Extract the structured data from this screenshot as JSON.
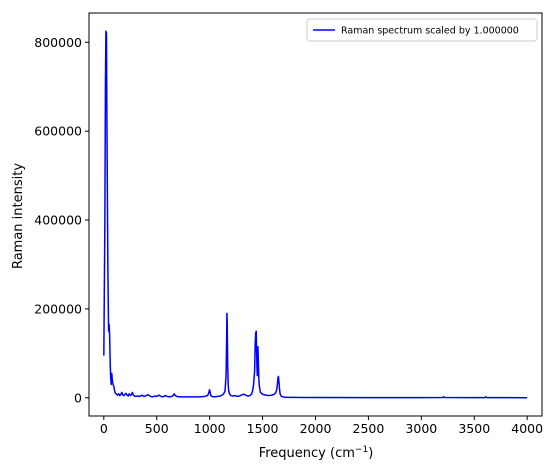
{
  "chart_data": {
    "type": "line",
    "xlabel": "Frequency (cm",
    "xlabel_sup": "−1",
    "xlabel_suffix": ")",
    "ylabel": "Raman intensity",
    "xlim": [
      -140,
      4140
    ],
    "ylim": [
      -41000,
      866000
    ],
    "xticks": [
      0,
      500,
      1000,
      1500,
      2000,
      2500,
      3000,
      3500,
      4000
    ],
    "xtick_labels": [
      "0",
      "500",
      "1000",
      "1500",
      "2000",
      "2500",
      "3000",
      "3500",
      "4000"
    ],
    "yticks": [
      0,
      200000,
      400000,
      600000,
      800000
    ],
    "ytick_labels": [
      "0",
      "200000",
      "400000",
      "600000",
      "800000"
    ],
    "grid": false,
    "legend_position": "upper right",
    "series": [
      {
        "name": "Raman spectrum scaled by 1.000000",
        "color": "#0000ff",
        "x": [
          0,
          10,
          15,
          20,
          25,
          30,
          38,
          45,
          50,
          55,
          60,
          65,
          70,
          75,
          80,
          85,
          90,
          95,
          100,
          110,
          120,
          130,
          140,
          150,
          160,
          170,
          180,
          190,
          200,
          210,
          220,
          230,
          240,
          250,
          260,
          270,
          280,
          290,
          300,
          320,
          340,
          360,
          380,
          400,
          420,
          440,
          460,
          480,
          500,
          520,
          540,
          560,
          580,
          600,
          620,
          640,
          655,
          665,
          675,
          690,
          720,
          760,
          800,
          850,
          900,
          950,
          980,
          990,
          995,
          1000,
          1005,
          1010,
          1020,
          1040,
          1070,
          1100,
          1130,
          1145,
          1155,
          1160,
          1163,
          1166,
          1170,
          1175,
          1180,
          1190,
          1200,
          1220,
          1240,
          1260,
          1280,
          1300,
          1320,
          1340,
          1360,
          1380,
          1395,
          1405,
          1415,
          1425,
          1430,
          1435,
          1440,
          1443,
          1447,
          1450,
          1453,
          1456,
          1460,
          1465,
          1470,
          1480,
          1500,
          1530,
          1560,
          1590,
          1610,
          1625,
          1635,
          1640,
          1645,
          1650,
          1655,
          1660,
          1665,
          1670,
          1680,
          1700,
          1750,
          1800,
          1900,
          2000,
          2500,
          3000,
          3200,
          3210,
          3220,
          3500,
          3600,
          3610,
          3620,
          4000
        ],
        "y": [
          95000,
          400000,
          700000,
          825000,
          820000,
          600000,
          300000,
          150000,
          165000,
          140000,
          80000,
          45000,
          30000,
          55000,
          40000,
          32000,
          28000,
          26000,
          18000,
          10000,
          8000,
          6000,
          9000,
          5000,
          7000,
          12000,
          6000,
          5000,
          8000,
          10000,
          6000,
          4000,
          9000,
          5000,
          7000,
          12000,
          6000,
          4000,
          3000,
          4000,
          3000,
          6000,
          3000,
          5000,
          7000,
          3000,
          2000,
          4000,
          3000,
          6000,
          3000,
          2000,
          5000,
          3000,
          2000,
          3000,
          5000,
          9000,
          5000,
          3000,
          2000,
          2000,
          2000,
          2000,
          2000,
          3000,
          5000,
          10000,
          15000,
          18000,
          12000,
          6000,
          3000,
          2000,
          3000,
          4000,
          8000,
          15000,
          50000,
          120000,
          190000,
          170000,
          80000,
          30000,
          15000,
          8000,
          5000,
          4000,
          5000,
          3000,
          4000,
          6000,
          8000,
          6000,
          4000,
          5000,
          8000,
          15000,
          30000,
          60000,
          120000,
          145000,
          150000,
          110000,
          70000,
          50000,
          90000,
          115000,
          80000,
          40000,
          25000,
          12000,
          8000,
          6000,
          5000,
          6000,
          8000,
          12000,
          20000,
          30000,
          45000,
          48000,
          35000,
          20000,
          10000,
          6000,
          3000,
          1500,
          1000,
          800,
          600,
          500,
          400,
          400,
          500,
          2500,
          500,
          300,
          300,
          2000,
          300,
          200
        ]
      }
    ]
  }
}
